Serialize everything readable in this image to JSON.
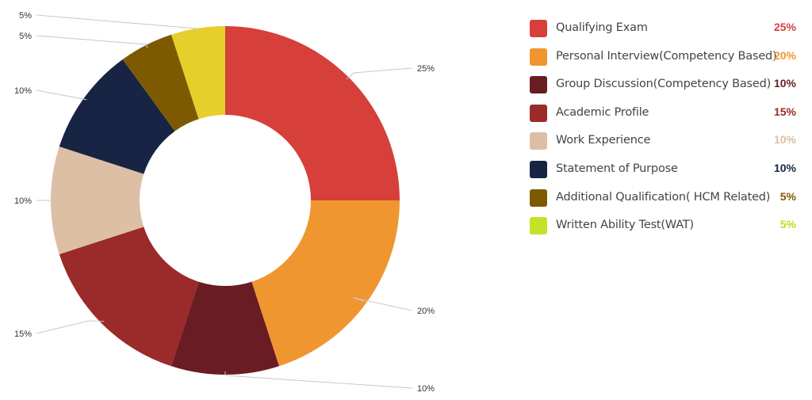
{
  "chart_data": {
    "type": "pie",
    "donut": true,
    "start": "top",
    "direction": "clockwise",
    "legend_position": "right",
    "slices": [
      {
        "label": "Qualifying Exam",
        "value": 25,
        "display": "25%",
        "color": "#d63f3a",
        "value_color": "#d63f3a"
      },
      {
        "label": "Personal Interview(Competency Based)",
        "value": 20,
        "display": "20%",
        "color": "#f09631",
        "value_color": "#f09631"
      },
      {
        "label": "Group Discussion(Competency Based)",
        "value": 10,
        "display": "10%",
        "color": "#6a1c24",
        "value_color": "#6a1c24"
      },
      {
        "label": "Academic Profile",
        "value": 15,
        "display": "15%",
        "color": "#9b2a2a",
        "value_color": "#9b2a2a"
      },
      {
        "label": "Work Experience",
        "value": 10,
        "display": "10%",
        "color": "#dcbfa5",
        "value_color": "#dcbfa5"
      },
      {
        "label": "Statement of Purpose",
        "value": 10,
        "display": "10%",
        "color": "#172444",
        "value_color": "#172444"
      },
      {
        "label": "Additional Qualification( HCM Related)",
        "value": 5,
        "display": "5%",
        "color": "#7d5a02",
        "value_color": "#7d5a02"
      },
      {
        "label": "Written Ability Test(WAT)",
        "value": 5,
        "display": "5%",
        "color": "#e6cf2a",
        "value_color": "#c6d81e",
        "legend_color": "#c5e22b"
      }
    ]
  }
}
